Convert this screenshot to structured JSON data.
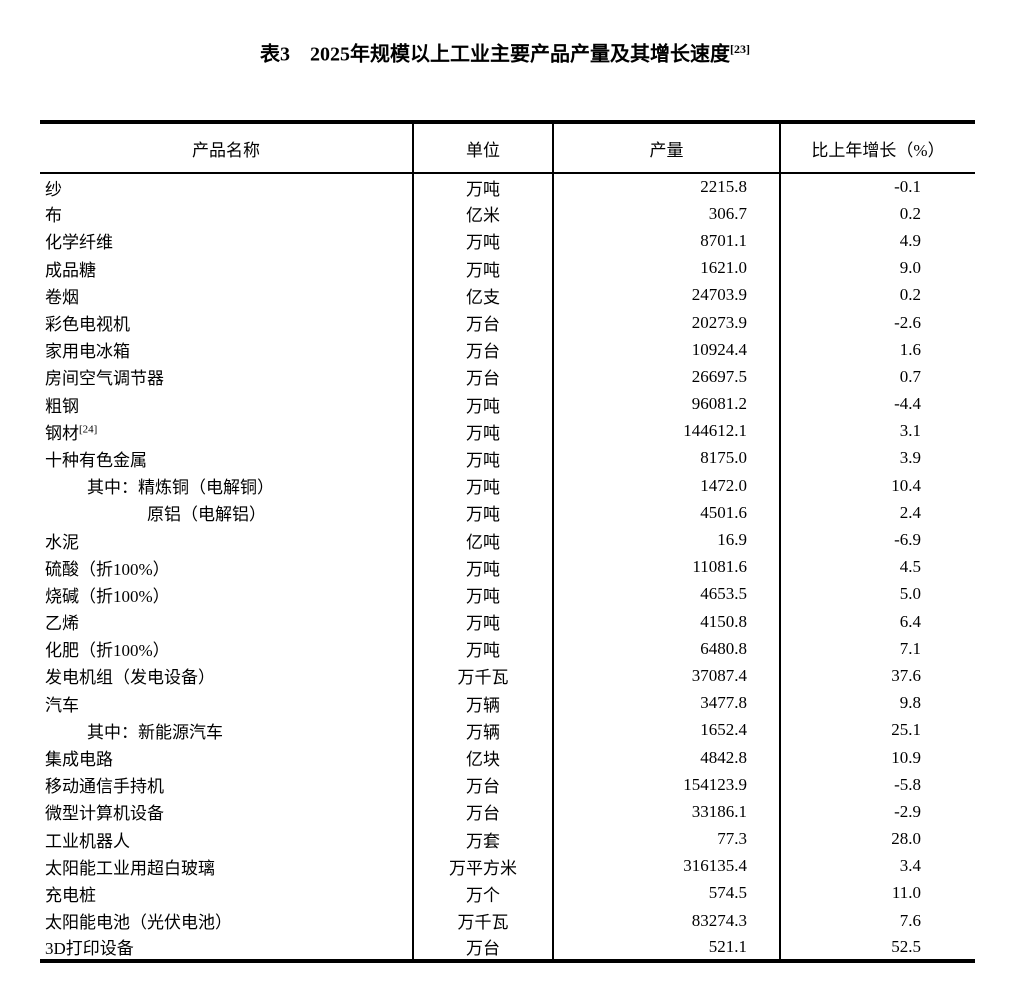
{
  "title": {
    "text": "表3　2025年规模以上工业主要产品产量及其增长速度",
    "footnote_ref": "[23]"
  },
  "colors": {
    "text": "#000000",
    "background": "#ffffff",
    "rule": "#000000"
  },
  "table": {
    "columns": [
      "产品名称",
      "单位",
      "产量",
      "比上年增长（%）"
    ],
    "rows": [
      {
        "name": "纱",
        "sup": "",
        "indent": 0,
        "unit": "万吨",
        "output": "2215.8",
        "growth": "-0.1"
      },
      {
        "name": "布",
        "sup": "",
        "indent": 0,
        "unit": "亿米",
        "output": "306.7",
        "growth": "0.2"
      },
      {
        "name": "化学纤维",
        "sup": "",
        "indent": 0,
        "unit": "万吨",
        "output": "8701.1",
        "growth": "4.9"
      },
      {
        "name": "成品糖",
        "sup": "",
        "indent": 0,
        "unit": "万吨",
        "output": "1621.0",
        "growth": "9.0"
      },
      {
        "name": "卷烟",
        "sup": "",
        "indent": 0,
        "unit": "亿支",
        "output": "24703.9",
        "growth": "0.2"
      },
      {
        "name": "彩色电视机",
        "sup": "",
        "indent": 0,
        "unit": "万台",
        "output": "20273.9",
        "growth": "-2.6"
      },
      {
        "name": "家用电冰箱",
        "sup": "",
        "indent": 0,
        "unit": "万台",
        "output": "10924.4",
        "growth": "1.6"
      },
      {
        "name": "房间空气调节器",
        "sup": "",
        "indent": 0,
        "unit": "万台",
        "output": "26697.5",
        "growth": "0.7"
      },
      {
        "name": "粗钢",
        "sup": "",
        "indent": 0,
        "unit": "万吨",
        "output": "96081.2",
        "growth": "-4.4"
      },
      {
        "name": "钢材",
        "sup": "[24]",
        "indent": 0,
        "unit": "万吨",
        "output": "144612.1",
        "growth": "3.1"
      },
      {
        "name": "十种有色金属",
        "sup": "",
        "indent": 0,
        "unit": "万吨",
        "output": "8175.0",
        "growth": "3.9"
      },
      {
        "name": "其中：精炼铜（电解铜）",
        "sup": "",
        "indent": 1,
        "unit": "万吨",
        "output": "1472.0",
        "growth": "10.4"
      },
      {
        "name": "原铝（电解铝）",
        "sup": "",
        "indent": 2,
        "unit": "万吨",
        "output": "4501.6",
        "growth": "2.4"
      },
      {
        "name": "水泥",
        "sup": "",
        "indent": 0,
        "unit": "亿吨",
        "output": "16.9",
        "growth": "-6.9"
      },
      {
        "name": "硫酸（折100%）",
        "sup": "",
        "indent": 0,
        "unit": "万吨",
        "output": "11081.6",
        "growth": "4.5"
      },
      {
        "name": "烧碱（折100%）",
        "sup": "",
        "indent": 0,
        "unit": "万吨",
        "output": "4653.5",
        "growth": "5.0"
      },
      {
        "name": "乙烯",
        "sup": "",
        "indent": 0,
        "unit": "万吨",
        "output": "4150.8",
        "growth": "6.4"
      },
      {
        "name": "化肥（折100%）",
        "sup": "",
        "indent": 0,
        "unit": "万吨",
        "output": "6480.8",
        "growth": "7.1"
      },
      {
        "name": "发电机组（发电设备）",
        "sup": "",
        "indent": 0,
        "unit": "万千瓦",
        "output": "37087.4",
        "growth": "37.6"
      },
      {
        "name": "汽车",
        "sup": "",
        "indent": 0,
        "unit": "万辆",
        "output": "3477.8",
        "growth": "9.8"
      },
      {
        "name": "其中：新能源汽车",
        "sup": "",
        "indent": 1,
        "unit": "万辆",
        "output": "1652.4",
        "growth": "25.1"
      },
      {
        "name": "集成电路",
        "sup": "",
        "indent": 0,
        "unit": "亿块",
        "output": "4842.8",
        "growth": "10.9"
      },
      {
        "name": "移动通信手持机",
        "sup": "",
        "indent": 0,
        "unit": "万台",
        "output": "154123.9",
        "growth": "-5.8"
      },
      {
        "name": "微型计算机设备",
        "sup": "",
        "indent": 0,
        "unit": "万台",
        "output": "33186.1",
        "growth": "-2.9"
      },
      {
        "name": "工业机器人",
        "sup": "",
        "indent": 0,
        "unit": "万套",
        "output": "77.3",
        "growth": "28.0"
      },
      {
        "name": "太阳能工业用超白玻璃",
        "sup": "",
        "indent": 0,
        "unit": "万平方米",
        "output": "316135.4",
        "growth": "3.4"
      },
      {
        "name": "充电桩",
        "sup": "",
        "indent": 0,
        "unit": "万个",
        "output": "574.5",
        "growth": "11.0"
      },
      {
        "name": "太阳能电池（光伏电池）",
        "sup": "",
        "indent": 0,
        "unit": "万千瓦",
        "output": "83274.3",
        "growth": "7.6"
      },
      {
        "name": "3D打印设备",
        "sup": "",
        "indent": 0,
        "unit": "万台",
        "output": "521.1",
        "growth": "52.5"
      }
    ]
  }
}
